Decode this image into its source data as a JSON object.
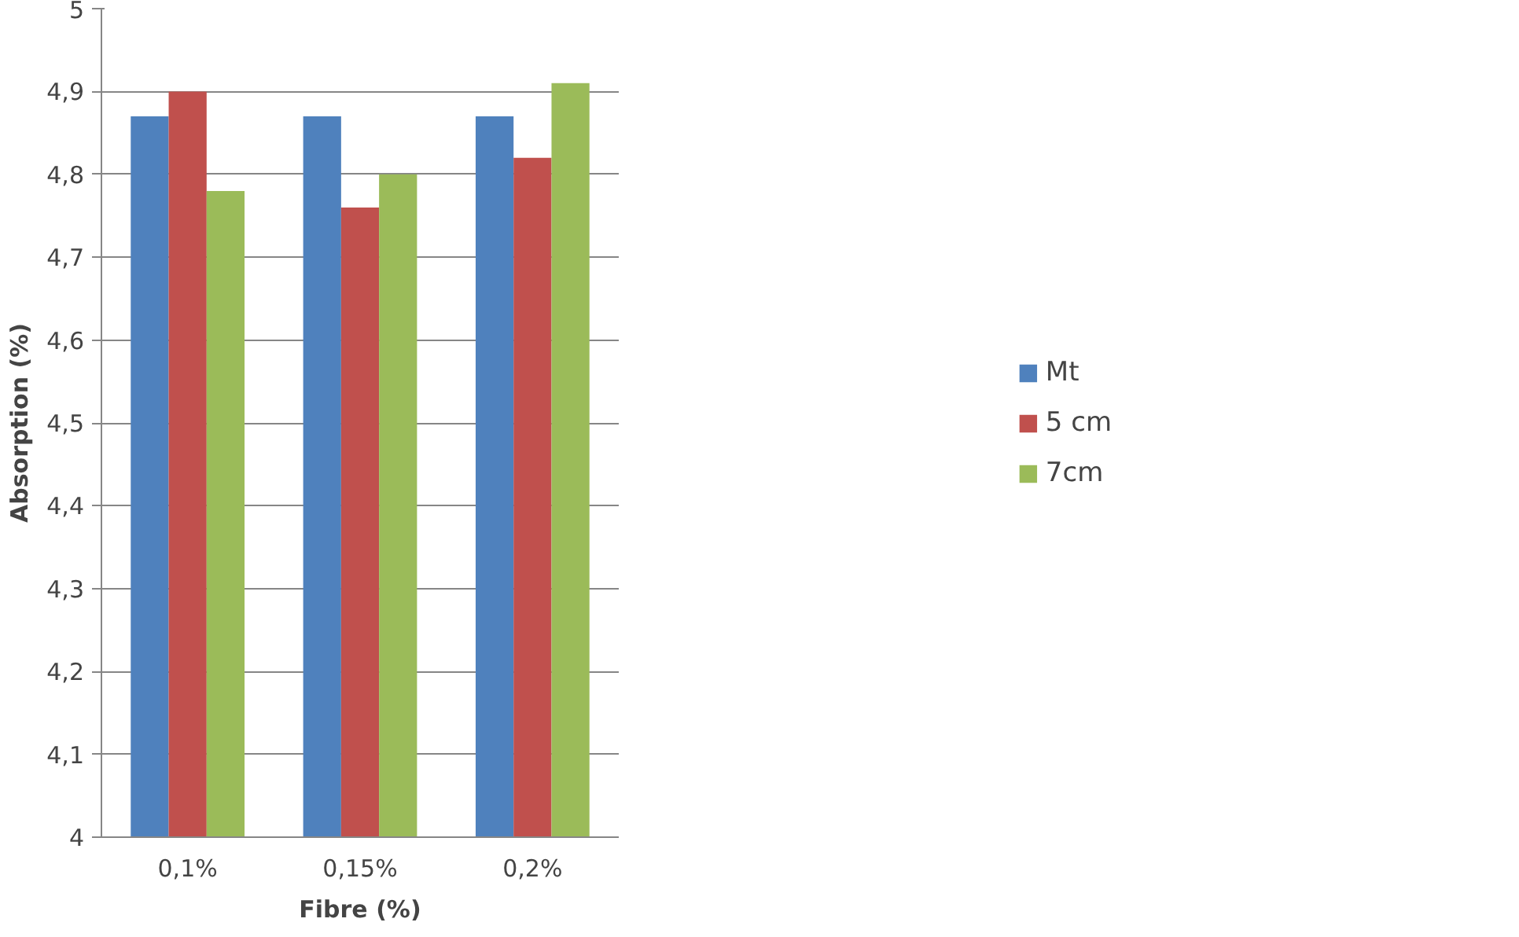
{
  "chart_data": {
    "type": "bar",
    "xlabel": "Fibre (%)",
    "ylabel": "Absorption (%)",
    "categories": [
      "0,1%",
      "0,15%",
      "0,2%"
    ],
    "series": [
      {
        "name": "Mt",
        "color": "#4f81bd",
        "values": [
          4.87,
          4.87,
          4.87
        ]
      },
      {
        "name": "5 cm",
        "color": "#c0504d",
        "values": [
          4.9,
          4.76,
          4.82
        ]
      },
      {
        "name": "7cm",
        "color": "#9bbb59",
        "values": [
          4.78,
          4.8,
          4.91
        ]
      }
    ],
    "ylim": [
      4,
      5
    ],
    "yticks": [
      4,
      {
        "value": 4.1,
        "label": "4,1"
      },
      {
        "value": 4.2,
        "label": "4,2"
      },
      {
        "value": 4.3,
        "label": "4,3"
      },
      {
        "value": 4.4,
        "label": "4,4"
      },
      {
        "value": 4.5,
        "label": "4,5"
      },
      {
        "value": 4.6,
        "label": "4,6"
      },
      {
        "value": 4.7,
        "label": "4,7"
      },
      {
        "value": 4.8,
        "label": "4,8"
      },
      {
        "value": 4.9,
        "label": "4,9"
      },
      5
    ],
    "grid": "y",
    "legend": "right"
  }
}
